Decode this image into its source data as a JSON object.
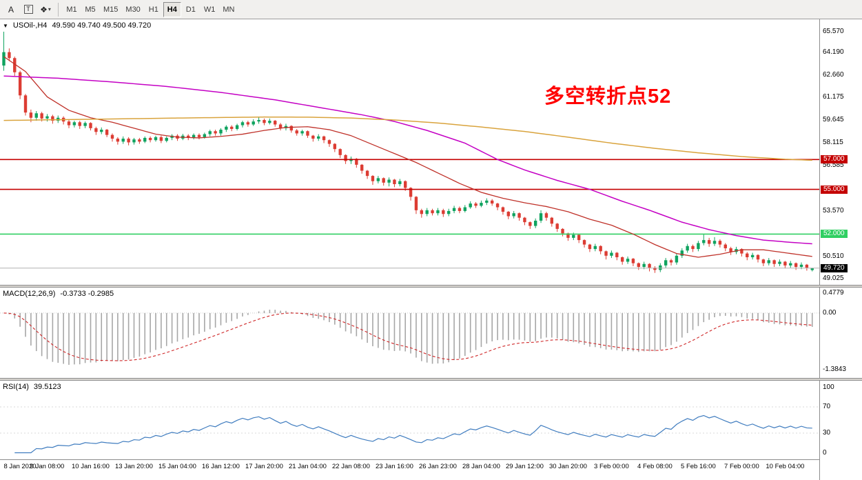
{
  "toolbar": {
    "tools": [
      {
        "label": "A"
      },
      {
        "label": "T"
      },
      {
        "label": "❖"
      }
    ],
    "caret": "▾",
    "timeframes": [
      "M1",
      "M5",
      "M15",
      "M30",
      "H1",
      "H4",
      "D1",
      "W1",
      "MN"
    ],
    "active_timeframe": "H4"
  },
  "price_pane": {
    "dropdown_icon": "▼",
    "symbol_title": "USOil-,H4",
    "ohlc_text": "49.590 49.740 49.500 49.720"
  },
  "macd_pane": {
    "label": "MACD(12,26,9)",
    "value_text": "-0.3733 -0.2985"
  },
  "rsi_pane": {
    "label": "RSI(14)",
    "value_text": "39.5123"
  },
  "annotation": {
    "text": "多空转折点52",
    "color": "#ff0000"
  },
  "chart_data": {
    "type": "candlestick",
    "symbol": "USOil-",
    "timeframe": "H4",
    "candle_colors": {
      "up": "#0fa35f",
      "down": "#dc3c33"
    },
    "candles": [
      [
        63.3,
        65.57,
        62.95,
        64.2
      ],
      [
        64.2,
        64.45,
        63.6,
        63.8
      ],
      [
        63.8,
        63.9,
        62.6,
        62.85
      ],
      [
        62.85,
        62.95,
        61.05,
        61.3
      ],
      [
        61.3,
        61.4,
        59.95,
        60.15
      ],
      [
        60.15,
        60.35,
        59.5,
        59.8
      ],
      [
        59.8,
        60.25,
        59.6,
        60.1
      ],
      [
        60.1,
        60.2,
        59.55,
        59.75
      ],
      [
        59.75,
        60.05,
        59.55,
        59.9
      ],
      [
        59.9,
        60.0,
        59.4,
        59.6
      ],
      [
        59.6,
        59.95,
        59.45,
        59.8
      ],
      [
        59.8,
        59.9,
        59.35,
        59.55
      ],
      [
        59.55,
        59.65,
        59.1,
        59.3
      ],
      [
        59.3,
        59.6,
        59.15,
        59.5
      ],
      [
        59.5,
        59.6,
        59.05,
        59.25
      ],
      [
        59.25,
        59.55,
        59.1,
        59.45
      ],
      [
        59.45,
        59.5,
        58.95,
        59.1
      ],
      [
        59.1,
        59.2,
        58.65,
        58.85
      ],
      [
        58.85,
        59.15,
        58.7,
        59.0
      ],
      [
        59.0,
        59.05,
        58.5,
        58.65
      ],
      [
        58.65,
        58.75,
        58.2,
        58.4
      ],
      [
        58.4,
        58.5,
        58.0,
        58.2
      ],
      [
        58.2,
        58.55,
        58.05,
        58.4
      ],
      [
        58.4,
        58.5,
        57.95,
        58.15
      ],
      [
        58.15,
        58.45,
        58.0,
        58.35
      ],
      [
        58.35,
        58.45,
        58.05,
        58.2
      ],
      [
        58.2,
        58.55,
        58.1,
        58.45
      ],
      [
        58.45,
        58.55,
        58.15,
        58.3
      ],
      [
        58.3,
        58.6,
        58.2,
        58.5
      ],
      [
        58.5,
        58.6,
        58.1,
        58.25
      ],
      [
        58.25,
        58.55,
        58.15,
        58.45
      ],
      [
        58.45,
        58.7,
        58.3,
        58.6
      ],
      [
        58.6,
        58.7,
        58.25,
        58.4
      ],
      [
        58.4,
        58.72,
        58.3,
        58.6
      ],
      [
        58.6,
        58.7,
        58.3,
        58.45
      ],
      [
        58.45,
        58.75,
        58.35,
        58.65
      ],
      [
        58.65,
        58.75,
        58.35,
        58.5
      ],
      [
        58.5,
        58.8,
        58.4,
        58.7
      ],
      [
        58.7,
        59.0,
        58.55,
        58.9
      ],
      [
        58.9,
        59.0,
        58.6,
        58.75
      ],
      [
        58.75,
        59.1,
        58.6,
        59.0
      ],
      [
        59.0,
        59.3,
        58.85,
        59.2
      ],
      [
        59.2,
        59.3,
        58.9,
        59.05
      ],
      [
        59.05,
        59.4,
        58.95,
        59.3
      ],
      [
        59.3,
        59.6,
        59.15,
        59.5
      ],
      [
        59.5,
        59.6,
        59.2,
        59.35
      ],
      [
        59.35,
        59.7,
        59.25,
        59.55
      ],
      [
        59.55,
        59.85,
        59.4,
        59.65
      ],
      [
        59.65,
        59.75,
        59.3,
        59.45
      ],
      [
        59.45,
        59.75,
        59.35,
        59.6
      ],
      [
        59.6,
        59.65,
        59.2,
        59.35
      ],
      [
        59.35,
        59.45,
        58.95,
        59.1
      ],
      [
        59.1,
        59.4,
        58.95,
        59.25
      ],
      [
        59.25,
        59.3,
        58.8,
        58.95
      ],
      [
        58.95,
        59.05,
        58.6,
        58.75
      ],
      [
        58.75,
        59.0,
        58.6,
        58.9
      ],
      [
        58.9,
        58.95,
        58.45,
        58.6
      ],
      [
        58.6,
        58.65,
        58.2,
        58.4
      ],
      [
        58.4,
        58.7,
        58.25,
        58.55
      ],
      [
        58.55,
        58.6,
        58.1,
        58.3
      ],
      [
        58.3,
        58.35,
        57.85,
        58.05
      ],
      [
        58.05,
        58.1,
        57.5,
        57.7
      ],
      [
        57.7,
        57.75,
        57.1,
        57.3
      ],
      [
        57.3,
        57.35,
        56.7,
        56.9
      ],
      [
        56.9,
        57.2,
        56.7,
        57.05
      ],
      [
        57.05,
        57.1,
        56.45,
        56.65
      ],
      [
        56.65,
        56.7,
        56.05,
        56.25
      ],
      [
        56.25,
        56.3,
        55.7,
        55.9
      ],
      [
        55.9,
        55.95,
        55.3,
        55.55
      ],
      [
        55.55,
        55.9,
        55.4,
        55.75
      ],
      [
        55.75,
        55.8,
        55.25,
        55.45
      ],
      [
        55.45,
        55.8,
        55.2,
        55.65
      ],
      [
        55.65,
        55.7,
        55.15,
        55.35
      ],
      [
        55.35,
        55.7,
        55.2,
        55.55
      ],
      [
        55.55,
        55.6,
        54.9,
        55.1
      ],
      [
        55.1,
        55.15,
        54.25,
        54.5
      ],
      [
        54.5,
        54.55,
        53.35,
        53.6
      ],
      [
        53.6,
        53.7,
        53.1,
        53.35
      ],
      [
        53.35,
        53.75,
        53.2,
        53.6
      ],
      [
        53.6,
        53.7,
        53.25,
        53.4
      ],
      [
        53.4,
        53.75,
        53.25,
        53.6
      ],
      [
        53.6,
        53.7,
        53.15,
        53.35
      ],
      [
        53.35,
        53.7,
        53.2,
        53.55
      ],
      [
        53.55,
        53.9,
        53.4,
        53.75
      ],
      [
        53.75,
        53.85,
        53.4,
        53.55
      ],
      [
        53.55,
        53.95,
        53.45,
        53.8
      ],
      [
        53.8,
        54.2,
        53.7,
        54.05
      ],
      [
        54.05,
        54.15,
        53.75,
        53.9
      ],
      [
        53.9,
        54.25,
        53.8,
        54.1
      ],
      [
        54.1,
        54.4,
        53.95,
        54.25
      ],
      [
        54.25,
        54.35,
        53.9,
        54.05
      ],
      [
        54.05,
        54.1,
        53.6,
        53.8
      ],
      [
        53.8,
        53.85,
        53.3,
        53.5
      ],
      [
        53.5,
        53.55,
        53.0,
        53.2
      ],
      [
        53.2,
        53.55,
        53.05,
        53.4
      ],
      [
        53.4,
        53.45,
        52.9,
        53.1
      ],
      [
        53.1,
        53.15,
        52.6,
        52.8
      ],
      [
        52.8,
        52.85,
        52.35,
        52.55
      ],
      [
        52.55,
        53.05,
        52.4,
        52.9
      ],
      [
        52.9,
        53.6,
        52.75,
        53.4
      ],
      [
        53.4,
        53.5,
        52.9,
        53.1
      ],
      [
        53.1,
        53.15,
        52.5,
        52.7
      ],
      [
        52.7,
        52.75,
        52.15,
        52.35
      ],
      [
        52.35,
        52.4,
        51.85,
        52.05
      ],
      [
        52.05,
        52.1,
        51.55,
        51.75
      ],
      [
        51.75,
        52.1,
        51.6,
        51.95
      ],
      [
        51.95,
        52.0,
        51.4,
        51.6
      ],
      [
        51.6,
        51.65,
        51.1,
        51.3
      ],
      [
        51.3,
        51.35,
        50.8,
        51.0
      ],
      [
        51.0,
        51.35,
        50.85,
        51.2
      ],
      [
        51.2,
        51.25,
        50.65,
        50.85
      ],
      [
        50.85,
        50.9,
        50.3,
        50.55
      ],
      [
        50.55,
        50.9,
        50.4,
        50.75
      ],
      [
        50.75,
        50.8,
        50.25,
        50.45
      ],
      [
        50.45,
        50.5,
        49.95,
        50.15
      ],
      [
        50.15,
        50.5,
        50.0,
        50.35
      ],
      [
        50.35,
        50.4,
        49.85,
        50.05
      ],
      [
        50.05,
        50.1,
        49.6,
        49.8
      ],
      [
        49.8,
        50.15,
        49.65,
        50.0
      ],
      [
        50.0,
        50.05,
        49.5,
        49.75
      ],
      [
        49.75,
        49.85,
        49.4,
        49.6
      ],
      [
        49.6,
        50.05,
        49.45,
        49.9
      ],
      [
        49.9,
        50.4,
        49.75,
        50.25
      ],
      [
        50.25,
        50.35,
        49.9,
        50.1
      ],
      [
        50.1,
        50.7,
        49.95,
        50.55
      ],
      [
        50.55,
        51.05,
        50.4,
        50.9
      ],
      [
        50.9,
        51.35,
        50.75,
        51.2
      ],
      [
        51.2,
        51.3,
        50.8,
        51.0
      ],
      [
        51.0,
        51.55,
        50.85,
        51.4
      ],
      [
        51.4,
        52.0,
        51.25,
        51.6
      ],
      [
        51.6,
        51.75,
        51.15,
        51.35
      ],
      [
        51.35,
        51.8,
        51.2,
        51.55
      ],
      [
        51.55,
        51.65,
        51.1,
        51.3
      ],
      [
        51.3,
        51.4,
        50.85,
        51.05
      ],
      [
        51.05,
        51.15,
        50.6,
        50.8
      ],
      [
        50.8,
        51.15,
        50.65,
        51.0
      ],
      [
        51.0,
        51.05,
        50.5,
        50.7
      ],
      [
        50.7,
        50.8,
        50.25,
        50.45
      ],
      [
        50.45,
        50.75,
        50.3,
        50.6
      ],
      [
        50.6,
        50.65,
        50.1,
        50.3
      ],
      [
        50.3,
        50.35,
        49.85,
        50.05
      ],
      [
        50.05,
        50.4,
        49.9,
        50.25
      ],
      [
        50.25,
        50.3,
        49.8,
        50.0
      ],
      [
        50.0,
        50.3,
        49.85,
        50.15
      ],
      [
        50.15,
        50.2,
        49.7,
        49.9
      ],
      [
        49.9,
        50.2,
        49.75,
        50.05
      ],
      [
        50.05,
        50.1,
        49.6,
        49.8
      ],
      [
        49.8,
        50.1,
        49.65,
        49.95
      ],
      [
        49.95,
        50.0,
        49.55,
        49.75
      ],
      [
        49.59,
        49.74,
        49.5,
        49.72
      ]
    ],
    "time_labels": [
      "8 Jan 2020",
      "9 Jan 08:00",
      "10 Jan 16:00",
      "13 Jan 20:00",
      "15 Jan 04:00",
      "16 Jan 12:00",
      "17 Jan 20:00",
      "21 Jan 04:00",
      "22 Jan 08:00",
      "23 Jan 16:00",
      "26 Jan 23:00",
      "28 Jan 04:00",
      "29 Jan 12:00",
      "30 Jan 20:00",
      "3 Feb 00:00",
      "4 Feb 08:00",
      "5 Feb 16:00",
      "7 Feb 00:00",
      "10 Feb 04:00"
    ],
    "price_axis": {
      "range": [
        48.6,
        66.4
      ],
      "ticks": [
        {
          "v": 65.57,
          "t": "65.570"
        },
        {
          "v": 64.19,
          "t": "64.190"
        },
        {
          "v": 62.66,
          "t": "62.660"
        },
        {
          "v": 61.175,
          "t": "61.175"
        },
        {
          "v": 59.645,
          "t": "59.645"
        },
        {
          "v": 58.115,
          "t": "58.115"
        },
        {
          "v": 56.585,
          "t": "56.585"
        },
        {
          "v": 53.57,
          "t": "53.570"
        },
        {
          "v": 50.51,
          "t": "50.510"
        },
        {
          "v": 49.025,
          "t": "49.025"
        }
      ]
    },
    "hlines": [
      {
        "value": 57.0,
        "label": "57.000",
        "color": "#c40000"
      },
      {
        "value": 55.0,
        "label": "55.000",
        "color": "#c40000"
      },
      {
        "value": 52.0,
        "label": "52.000",
        "color": "#30cf62"
      }
    ],
    "current_price": {
      "value": 49.72,
      "label": "49.720"
    },
    "moving_averages": [
      {
        "name": "ma-fast-red",
        "color": "#bf3028",
        "width": 1.3,
        "points": [
          [
            0,
            63.9
          ],
          [
            4,
            62.9
          ],
          [
            8,
            61.2
          ],
          [
            12,
            60.3
          ],
          [
            16,
            59.8
          ],
          [
            20,
            59.5
          ],
          [
            24,
            59.1
          ],
          [
            28,
            58.7
          ],
          [
            32,
            58.5
          ],
          [
            36,
            58.45
          ],
          [
            40,
            58.55
          ],
          [
            44,
            58.7
          ],
          [
            48,
            58.95
          ],
          [
            52,
            59.15
          ],
          [
            56,
            59.2
          ],
          [
            60,
            59.0
          ],
          [
            64,
            58.6
          ],
          [
            68,
            58.0
          ],
          [
            72,
            57.4
          ],
          [
            76,
            56.8
          ],
          [
            80,
            56.1
          ],
          [
            84,
            55.4
          ],
          [
            88,
            54.8
          ],
          [
            92,
            54.4
          ],
          [
            96,
            54.1
          ],
          [
            100,
            53.85
          ],
          [
            104,
            53.5
          ],
          [
            108,
            53.0
          ],
          [
            112,
            52.6
          ],
          [
            116,
            52.0
          ],
          [
            120,
            51.3
          ],
          [
            124,
            50.7
          ],
          [
            128,
            50.45
          ],
          [
            132,
            50.65
          ],
          [
            136,
            50.95
          ],
          [
            140,
            50.95
          ],
          [
            144,
            50.75
          ],
          [
            149,
            50.5
          ]
        ]
      },
      {
        "name": "ma-slow-magenta",
        "color": "#c400c4",
        "width": 1.5,
        "points": [
          [
            0,
            62.6
          ],
          [
            10,
            62.45
          ],
          [
            20,
            62.2
          ],
          [
            30,
            61.9
          ],
          [
            40,
            61.5
          ],
          [
            50,
            61.0
          ],
          [
            58,
            60.5
          ],
          [
            66,
            60.0
          ],
          [
            72,
            59.55
          ],
          [
            78,
            58.95
          ],
          [
            85,
            58.1
          ],
          [
            91,
            57.0
          ],
          [
            96,
            56.3
          ],
          [
            102,
            55.6
          ],
          [
            108,
            55.0
          ],
          [
            114,
            54.2
          ],
          [
            119,
            53.6
          ],
          [
            125,
            52.8
          ],
          [
            130,
            52.3
          ],
          [
            135,
            51.9
          ],
          [
            140,
            51.6
          ],
          [
            145,
            51.45
          ],
          [
            149,
            51.35
          ]
        ]
      },
      {
        "name": "ma-long-orange",
        "color": "#d9a33c",
        "width": 1.5,
        "points": [
          [
            0,
            59.62
          ],
          [
            12,
            59.68
          ],
          [
            24,
            59.74
          ],
          [
            36,
            59.8
          ],
          [
            48,
            59.85
          ],
          [
            56,
            59.84
          ],
          [
            64,
            59.78
          ],
          [
            72,
            59.65
          ],
          [
            80,
            59.45
          ],
          [
            88,
            59.18
          ],
          [
            96,
            58.88
          ],
          [
            104,
            58.5
          ],
          [
            112,
            58.1
          ],
          [
            120,
            57.75
          ],
          [
            128,
            57.45
          ],
          [
            136,
            57.2
          ],
          [
            144,
            57.02
          ],
          [
            149,
            56.95
          ]
        ]
      }
    ],
    "macd": {
      "label": "MACD(12,26,9)",
      "fast": 12,
      "slow": 26,
      "signal": 9,
      "display_values": [
        "-0.3733",
        "-0.2985"
      ],
      "range": [
        -1.58,
        0.62
      ],
      "axis_ticks": [
        {
          "v": 0.4779,
          "t": "0.4779"
        },
        {
          "v": 0,
          "t": "0.00"
        },
        {
          "v": -1.3843,
          "t": "-1.3843"
        }
      ],
      "histogram_color": "#a6a6a6",
      "signal_color": "#cf2526"
    },
    "rsi": {
      "label": "RSI(14)",
      "period": 14,
      "display_value": "39.5123",
      "range": [
        -10,
        110
      ],
      "levels": [
        70,
        30
      ],
      "axis_ticks": [
        {
          "v": 100,
          "t": "100"
        },
        {
          "v": 70,
          "t": "70"
        },
        {
          "v": 30,
          "t": "30"
        },
        {
          "v": 0,
          "t": "0"
        }
      ],
      "color": "#3f7cbf"
    }
  }
}
